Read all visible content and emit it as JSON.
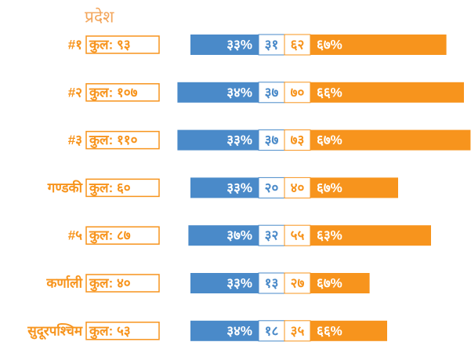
{
  "chart_data": {
    "type": "diverging_bar",
    "title": "प्रदेश",
    "categories": [
      "#१",
      "#२",
      "#३",
      "गण्डकी",
      "#५",
      "कर्णाली",
      "सुदूरपश्चिम"
    ],
    "totals": [
      93,
      107,
      110,
      60,
      87,
      40,
      53
    ],
    "total_labels": [
      "कुल: ९३",
      "कुल: १०७",
      "कुल: ११०",
      "कुल: ६०",
      "कुल: ८७",
      "कुल: ४०",
      "कुल: ५३"
    ],
    "series": [
      {
        "color": "#4a8ac9",
        "values": [
          31,
          37,
          37,
          20,
          32,
          13,
          18
        ],
        "value_labels": [
          "३१",
          "३७",
          "३७",
          "२०",
          "३२",
          "१३",
          "१८"
        ],
        "percents": [
          33,
          34,
          33,
          33,
          37,
          33,
          34
        ],
        "percent_labels": [
          "३३%",
          "३४%",
          "३३%",
          "३३%",
          "३७%",
          "३३%",
          "३४%"
        ]
      },
      {
        "color": "#f7941d",
        "values": [
          62,
          70,
          73,
          40,
          55,
          27,
          35
        ],
        "value_labels": [
          "६२",
          "७०",
          "७३",
          "४०",
          "५५",
          "२७",
          "३५"
        ],
        "percents": [
          67,
          66,
          67,
          67,
          63,
          67,
          66
        ],
        "percent_labels": [
          "६७%",
          "६६%",
          "६७%",
          "६७%",
          "६३%",
          "६७%",
          "६६%"
        ]
      }
    ]
  }
}
